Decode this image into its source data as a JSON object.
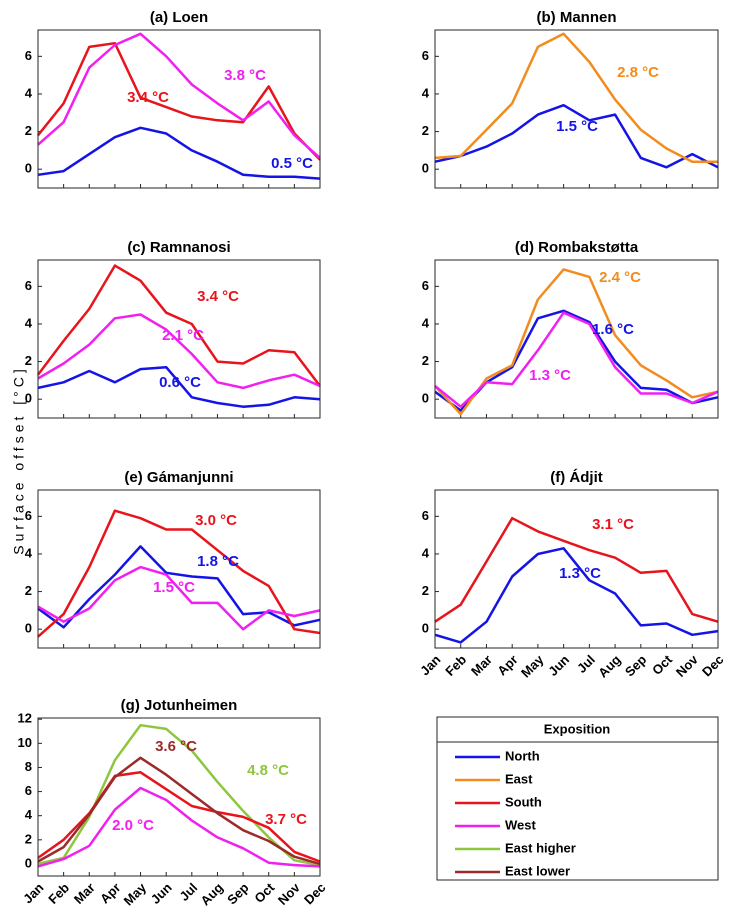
{
  "ylabel": "Surface offset [°C]",
  "legend": {
    "title": "Exposition",
    "entries": [
      {
        "name": "North",
        "color": "#1414e6"
      },
      {
        "name": "East",
        "color": "#f28c1e"
      },
      {
        "name": "South",
        "color": "#e8141c"
      },
      {
        "name": "West",
        "color": "#f020f0"
      },
      {
        "name": "East higher",
        "color": "#8ec63f"
      },
      {
        "name": "East lower",
        "color": "#9c2a2a"
      }
    ]
  },
  "chart_data": [
    {
      "type": "line",
      "title": "(a) Loen",
      "ylim": [
        -1,
        7.4
      ],
      "yticks": [
        0,
        2,
        4,
        6
      ],
      "series": [
        {
          "color": "#1414e6",
          "values": [
            -0.3,
            -0.1,
            0.8,
            1.7,
            2.2,
            1.9,
            1.0,
            0.4,
            -0.3,
            -0.4,
            -0.4,
            -0.5
          ]
        },
        {
          "color": "#e8141c",
          "values": [
            1.8,
            3.5,
            6.5,
            6.7,
            3.8,
            3.3,
            2.8,
            2.6,
            2.5,
            4.4,
            1.9,
            0.5
          ]
        },
        {
          "color": "#f020f0",
          "values": [
            1.3,
            2.5,
            5.4,
            6.6,
            7.2,
            6.0,
            4.5,
            3.5,
            2.6,
            3.6,
            1.8,
            0.6
          ]
        }
      ],
      "annotations": [
        {
          "text": "3.4 °C",
          "color": "#e8141c"
        },
        {
          "text": "3.8 °C",
          "color": "#f020f0"
        },
        {
          "text": "0.5 °C",
          "color": "#1414e6"
        }
      ]
    },
    {
      "type": "line",
      "title": "(b) Mannen",
      "ylim": [
        -1,
        7.4
      ],
      "yticks": [
        0,
        2,
        4,
        6
      ],
      "series": [
        {
          "color": "#1414e6",
          "values": [
            0.4,
            0.7,
            1.2,
            1.9,
            2.9,
            3.4,
            2.6,
            2.9,
            0.6,
            0.1,
            0.8,
            0.1
          ]
        },
        {
          "color": "#f28c1e",
          "values": [
            0.6,
            0.7,
            2.1,
            3.5,
            6.5,
            7.2,
            5.7,
            3.7,
            2.1,
            1.1,
            0.4,
            0.4
          ]
        }
      ],
      "annotations": [
        {
          "text": "2.8 °C",
          "color": "#f28c1e"
        },
        {
          "text": "1.5 °C",
          "color": "#1414e6"
        }
      ]
    },
    {
      "type": "line",
      "title": "(c) Ramnanosi",
      "ylim": [
        -1,
        7.4
      ],
      "yticks": [
        0,
        2,
        4,
        6
      ],
      "series": [
        {
          "color": "#1414e6",
          "values": [
            0.6,
            0.9,
            1.5,
            0.9,
            1.6,
            1.7,
            0.1,
            -0.2,
            -0.4,
            -0.3,
            0.1,
            0.0
          ]
        },
        {
          "color": "#e8141c",
          "values": [
            1.3,
            3.1,
            4.8,
            7.1,
            6.3,
            4.6,
            4.0,
            2.0,
            1.9,
            2.6,
            2.5,
            0.7
          ]
        },
        {
          "color": "#f020f0",
          "values": [
            1.1,
            1.9,
            2.9,
            4.3,
            4.5,
            3.7,
            2.4,
            0.9,
            0.6,
            1.0,
            1.3,
            0.7
          ]
        }
      ],
      "annotations": [
        {
          "text": "3.4 °C",
          "color": "#e8141c"
        },
        {
          "text": "2.1 °C",
          "color": "#f020f0"
        },
        {
          "text": "0.6 °C",
          "color": "#1414e6"
        }
      ]
    },
    {
      "type": "line",
      "title": "(d) Rombakstøtta",
      "ylim": [
        -1,
        7.4
      ],
      "yticks": [
        0,
        2,
        4,
        6
      ],
      "series": [
        {
          "color": "#1414e6",
          "values": [
            0.4,
            -0.6,
            0.9,
            1.7,
            4.3,
            4.7,
            4.1,
            2.0,
            0.6,
            0.5,
            -0.2,
            0.1
          ]
        },
        {
          "color": "#f28c1e",
          "values": [
            0.7,
            -0.8,
            1.1,
            1.8,
            5.3,
            6.9,
            6.5,
            3.4,
            1.8,
            1.0,
            0.1,
            0.4
          ]
        },
        {
          "color": "#f020f0",
          "values": [
            0.7,
            -0.4,
            0.9,
            0.8,
            2.6,
            4.6,
            4.0,
            1.7,
            0.3,
            0.3,
            -0.2,
            0.4
          ]
        }
      ],
      "annotations": [
        {
          "text": "1.6 °C",
          "color": "#1414e6"
        },
        {
          "text": "2.4 °C",
          "color": "#f28c1e"
        },
        {
          "text": "1.3 °C",
          "color": "#f020f0"
        }
      ]
    },
    {
      "type": "line",
      "title": "(e) Gámanjunni",
      "ylim": [
        -1,
        7.4
      ],
      "yticks": [
        0,
        2,
        4,
        6
      ],
      "series": [
        {
          "color": "#1414e6",
          "values": [
            1.1,
            0.1,
            1.6,
            2.9,
            4.4,
            3.0,
            2.8,
            2.7,
            0.8,
            0.9,
            0.2,
            0.5
          ]
        },
        {
          "color": "#e8141c",
          "values": [
            -0.4,
            0.8,
            3.3,
            6.3,
            5.9,
            5.3,
            5.3,
            4.2,
            3.1,
            2.3,
            0.0,
            -0.2
          ]
        },
        {
          "color": "#f020f0",
          "values": [
            1.2,
            0.4,
            1.1,
            2.6,
            3.3,
            2.9,
            1.4,
            1.4,
            0.0,
            1.0,
            0.7,
            1.0
          ]
        }
      ],
      "annotations": [
        {
          "text": "3.0 °C",
          "color": "#e8141c"
        },
        {
          "text": "1.8 °C",
          "color": "#1414e6"
        },
        {
          "text": "1.5 °C",
          "color": "#f020f0"
        }
      ]
    },
    {
      "type": "line",
      "title": "(f) Ádjit",
      "ylim": [
        -1,
        7.4
      ],
      "yticks": [
        0,
        2,
        4,
        6
      ],
      "categories": [
        "Jan",
        "Feb",
        "Mar",
        "Apr",
        "May",
        "Jun",
        "Jul",
        "Aug",
        "Sep",
        "Oct",
        "Nov",
        "Dec"
      ],
      "series": [
        {
          "color": "#1414e6",
          "values": [
            -0.3,
            -0.7,
            0.4,
            2.8,
            4.0,
            4.3,
            2.6,
            1.9,
            0.2,
            0.3,
            -0.3,
            -0.1
          ]
        },
        {
          "color": "#e8141c",
          "values": [
            0.4,
            1.3,
            3.6,
            5.9,
            5.2,
            4.7,
            4.2,
            3.8,
            3.0,
            3.1,
            0.8,
            0.4
          ]
        }
      ],
      "annotations": [
        {
          "text": "3.1 °C",
          "color": "#e8141c"
        },
        {
          "text": "1.3 °C",
          "color": "#1414e6"
        }
      ]
    },
    {
      "type": "line",
      "title": "(g) Jotunheimen",
      "ylim": [
        -1,
        12.1
      ],
      "yticks": [
        0,
        2,
        4,
        6,
        8,
        10,
        12
      ],
      "categories": [
        "Jan",
        "Feb",
        "Mar",
        "Apr",
        "May",
        "Jun",
        "Jul",
        "Aug",
        "Sep",
        "Oct",
        "Nov",
        "Dec"
      ],
      "series": [
        {
          "color": "#8ec63f",
          "values": [
            0.0,
            0.5,
            3.9,
            8.6,
            11.5,
            11.2,
            9.4,
            6.8,
            4.4,
            2.2,
            0.3,
            -0.1
          ]
        },
        {
          "color": "#e8141c",
          "values": [
            0.5,
            2.0,
            4.2,
            7.3,
            7.6,
            6.2,
            4.8,
            4.3,
            3.9,
            3.0,
            1.0,
            0.2
          ]
        },
        {
          "color": "#9c2a2a",
          "values": [
            0.2,
            1.4,
            4.1,
            7.2,
            8.8,
            7.4,
            5.8,
            4.2,
            2.8,
            1.9,
            0.6,
            0.0
          ]
        },
        {
          "color": "#f020f0",
          "values": [
            -0.2,
            0.4,
            1.5,
            4.5,
            6.3,
            5.3,
            3.6,
            2.2,
            1.3,
            0.1,
            -0.1,
            -0.2
          ]
        }
      ],
      "annotations": [
        {
          "text": "3.6 °C",
          "color": "#9c2a2a"
        },
        {
          "text": "4.8 °C",
          "color": "#8ec63f"
        },
        {
          "text": "3.7 °C",
          "color": "#e8141c"
        },
        {
          "text": "2.0 °C",
          "color": "#f020f0"
        }
      ]
    }
  ]
}
